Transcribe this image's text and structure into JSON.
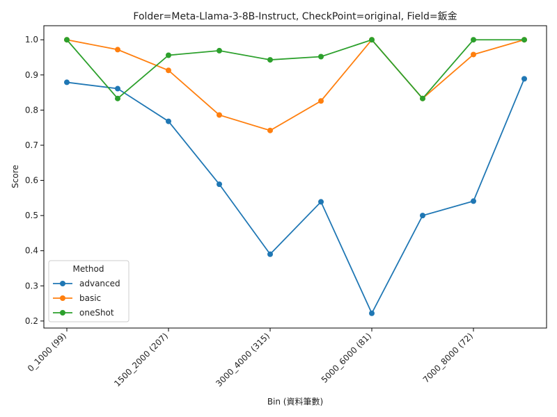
{
  "chart_data": {
    "type": "line",
    "title": "Folder=Meta-Llama-3-8B-Instruct, CheckPoint=original, Field=鈑金",
    "xlabel": "Bin (資料筆數)",
    "ylabel": "Score",
    "x_tick_labels": [
      "0_1000 (99)",
      "1500_2000 (207)",
      "3000_4000 (315)",
      "5000_6000 (81)",
      "7000_8000 (72)"
    ],
    "x_tick_positions": [
      0,
      2,
      4,
      6,
      8
    ],
    "x_count": 10,
    "ylim": [
      0.18,
      1.04
    ],
    "y_ticks": [
      0.2,
      0.3,
      0.4,
      0.5,
      0.6,
      0.7,
      0.8,
      0.9,
      1.0
    ],
    "y_tick_labels": [
      "0.2",
      "0.3",
      "0.4",
      "0.5",
      "0.6",
      "0.7",
      "0.8",
      "0.9",
      "1.0"
    ],
    "legend": {
      "title": "Method",
      "position": "lower-left"
    },
    "grid": false,
    "series": [
      {
        "name": "advanced",
        "color": "#1f77b4",
        "values": [
          0.879,
          0.861,
          0.768,
          0.589,
          0.39,
          0.539,
          0.222,
          0.5,
          0.541,
          0.889
        ]
      },
      {
        "name": "basic",
        "color": "#ff7f0e",
        "values": [
          1.0,
          0.972,
          0.913,
          0.786,
          0.742,
          0.826,
          1.0,
          0.833,
          0.958,
          1.0
        ]
      },
      {
        "name": "oneShot",
        "color": "#2ca02c",
        "values": [
          1.0,
          0.833,
          0.956,
          0.969,
          0.943,
          0.952,
          1.0,
          0.833,
          1.0,
          1.0
        ]
      }
    ]
  }
}
